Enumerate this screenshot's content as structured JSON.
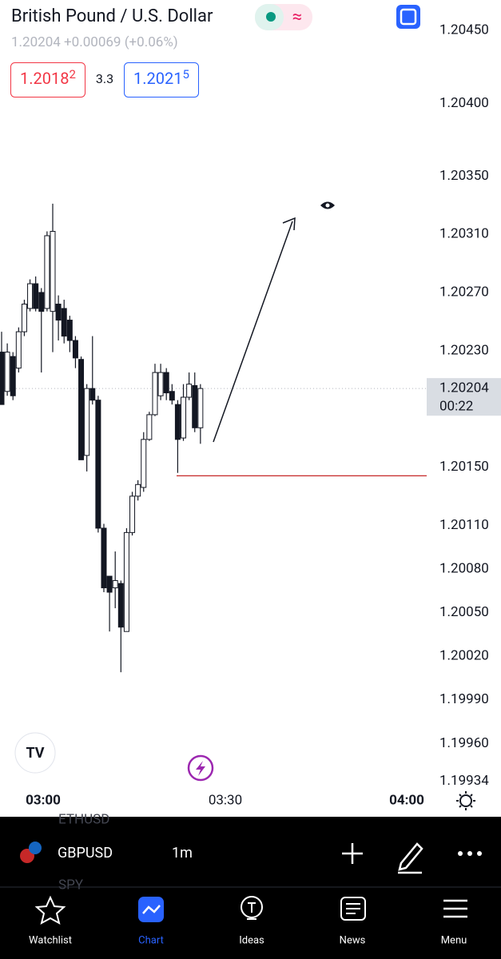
{
  "header": {
    "title": "British Pound / U.S. Dollar",
    "last": "1.20204",
    "change": "+0.00069",
    "change_pct": "(+0.06%)"
  },
  "quote": {
    "bid_main": "1.2018",
    "bid_pip": "2",
    "spread": "3.3",
    "ask_main": "1.2021",
    "ask_pip": "5"
  },
  "chart_data": {
    "type": "candlestick",
    "candles": [
      [
        1.20229,
        1.20243,
        1.20193,
        1.20193
      ],
      [
        1.20202,
        1.20235,
        1.20199,
        1.20229
      ],
      [
        1.20226,
        1.20229,
        1.20196,
        1.20199
      ],
      [
        1.20218,
        1.20246,
        1.20215,
        1.20243
      ],
      [
        1.20243,
        1.20265,
        1.2024,
        1.20262
      ],
      [
        1.20259,
        1.20279,
        1.20257,
        1.20276
      ],
      [
        1.20276,
        1.20281,
        1.20257,
        1.20259
      ],
      [
        1.2027,
        1.20273,
        1.20215,
        1.20257
      ],
      [
        1.20259,
        1.20312,
        1.20257,
        1.20309
      ],
      [
        1.20257,
        1.20331,
        1.20229,
        1.20312
      ],
      [
        1.20262,
        1.20268,
        1.20237,
        1.20251
      ],
      [
        1.20259,
        1.20265,
        1.20235,
        1.2024
      ],
      [
        1.20251,
        1.20254,
        1.20229,
        1.20237
      ],
      [
        1.20237,
        1.2024,
        1.20218,
        1.20225
      ],
      [
        1.20224,
        1.20226,
        1.20155,
        1.20155
      ],
      [
        1.20158,
        1.20207,
        1.20147,
        1.20204
      ],
      [
        1.20204,
        1.2024,
        1.20193,
        1.20196
      ],
      [
        1.20196,
        1.20199,
        1.20105,
        1.20108
      ],
      [
        1.20108,
        1.20111,
        1.20064,
        1.20067
      ],
      [
        1.20075,
        1.20075,
        1.20037,
        1.20064
      ],
      [
        1.20067,
        1.20092,
        1.20053,
        1.20072
      ],
      [
        1.2007,
        1.20072,
        1.20009,
        1.2004
      ],
      [
        1.20037,
        1.20108,
        1.20037,
        1.20105
      ],
      [
        1.20105,
        1.20133,
        1.20103,
        1.2013
      ],
      [
        1.2013,
        1.20141,
        1.20127,
        1.20138
      ],
      [
        1.20136,
        1.20174,
        1.20133,
        1.20169
      ],
      [
        1.20169,
        1.20188,
        1.20168,
        1.20186
      ],
      [
        1.20186,
        1.20221,
        1.20185,
        1.20215
      ],
      [
        1.20199,
        1.20221,
        1.20196,
        1.20215
      ],
      [
        1.20215,
        1.20218,
        1.20196,
        1.20201
      ],
      [
        1.20202,
        1.20207,
        1.20193,
        1.20196
      ],
      [
        1.20193,
        1.20196,
        1.20146,
        1.20169
      ],
      [
        1.2017,
        1.20207,
        1.20168,
        1.20198
      ],
      [
        1.20198,
        1.20215,
        1.20196,
        1.20207
      ],
      [
        1.20206,
        1.20215,
        1.20174,
        1.20177
      ],
      [
        1.20177,
        1.20207,
        1.20166,
        1.20204
      ]
    ],
    "ylim": [
      1.1993,
      1.20471
    ],
    "yticks": [
      {
        "value": 1.2045,
        "label": "1.20450"
      },
      {
        "value": 1.204,
        "label": "1.20400"
      },
      {
        "value": 1.2035,
        "label": "1.20350"
      },
      {
        "value": 1.2031,
        "label": "1.20310"
      },
      {
        "value": 1.2027,
        "label": "1.20270"
      },
      {
        "value": 1.2023,
        "label": "1.20230"
      },
      {
        "value": 1.2015,
        "label": "1.20150"
      },
      {
        "value": 1.2011,
        "label": "1.20110"
      },
      {
        "value": 1.2008,
        "label": "1.20080"
      },
      {
        "value": 1.2005,
        "label": "1.20050"
      },
      {
        "value": 1.2002,
        "label": "1.20020"
      },
      {
        "value": 1.1999,
        "label": "1.19990"
      },
      {
        "value": 1.1996,
        "label": "1.19960"
      },
      {
        "value": 1.19934,
        "label": "1.19934"
      }
    ],
    "current_price": {
      "value": 1.20204,
      "label": "1.20204"
    },
    "countdown": "00:22",
    "level": 1.20144,
    "xticks": [
      "03:00",
      "03:30",
      "04:00"
    ]
  },
  "toolbar": {
    "symbol": "GBPUSD",
    "interval": "1m",
    "ghost_symbols": [
      "ETHUSD",
      "SPY"
    ]
  },
  "nav": [
    "Watchlist",
    "Chart",
    "Ideas",
    "News",
    "Menu"
  ]
}
